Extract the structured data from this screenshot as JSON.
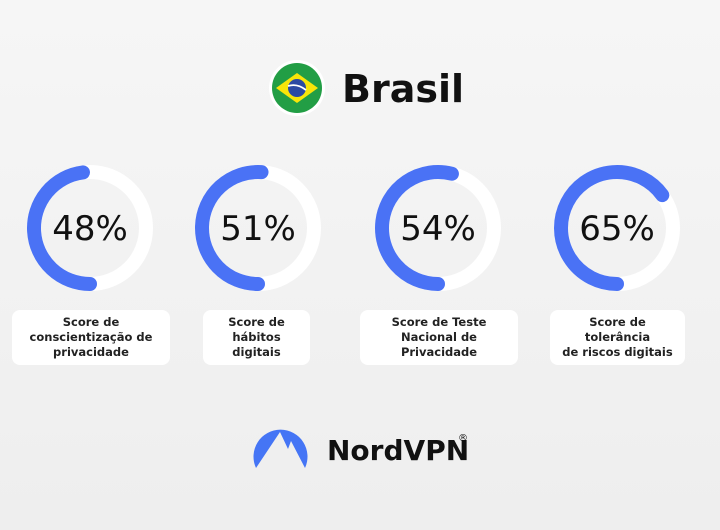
{
  "chart_data": {
    "type": "gauge",
    "title": "Brasil",
    "categories": [
      "Score de\nconscientização de\nprivacidade",
      "Score de\nhábitos digitais",
      "Score de Teste\nNacional de Privacidade",
      "Score de tolerância\nde riscos digitais"
    ],
    "values": [
      48,
      51,
      54,
      65
    ],
    "value_labels": [
      "48%",
      "51%",
      "54%",
      "65%"
    ],
    "color": "#4a72f5"
  },
  "footer": {
    "brand": "NordVPN",
    "mark": "®"
  }
}
